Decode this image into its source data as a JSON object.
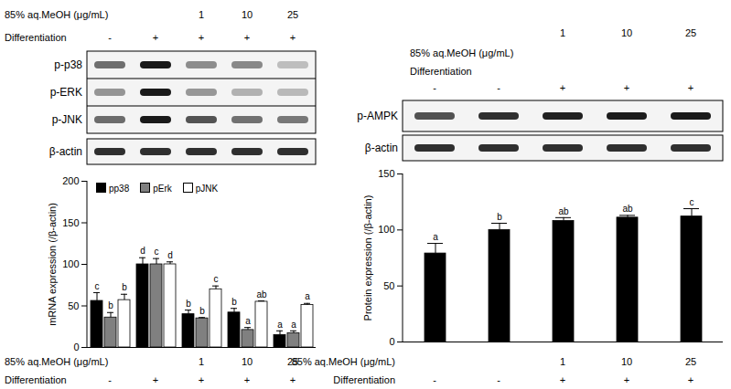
{
  "chart_data": [
    {
      "type": "bar",
      "y_label": "mRNA expression (/β-actin)",
      "ylim": [
        0,
        200
      ],
      "yticks": [
        0,
        50,
        100,
        150,
        200
      ],
      "categories": [
        null,
        null,
        null,
        null,
        null
      ],
      "tick_labels": "y",
      "legend": "top-left",
      "treatments": [
        {
          "label": "85% aq.MeOH (μg/mL)",
          "values": [
            null,
            null,
            "1",
            "10",
            "25"
          ]
        },
        {
          "label": "Differentiation",
          "values": [
            "-",
            "+",
            "+",
            "+",
            "+"
          ]
        }
      ],
      "blots": [
        "p-p38",
        "p-ERK",
        "p-JNK",
        "β-actin"
      ],
      "series": [
        {
          "name": "pp38",
          "color": "#000000",
          "values": [
            56,
            100,
            40,
            42,
            15
          ],
          "errors": [
            10,
            8,
            5,
            5,
            5
          ],
          "letters": [
            "c",
            "d",
            "b",
            "b",
            "a"
          ]
        },
        {
          "name": "pErk",
          "color": "#808080",
          "values": [
            36,
            100,
            35,
            21,
            17
          ],
          "errors": [
            6,
            7,
            1,
            3,
            3
          ],
          "letters": [
            "b",
            "c",
            "b",
            "a",
            "a"
          ]
        },
        {
          "name": "pJNK",
          "color": "#ffffff",
          "values": [
            57,
            100,
            70,
            55,
            51
          ],
          "errors": [
            7,
            3,
            4,
            1,
            2
          ],
          "letters": [
            "b",
            "d",
            "c",
            "ab",
            "a"
          ]
        }
      ]
    },
    {
      "type": "bar",
      "y_label": "Protein expression (/β-actin)",
      "ylim": [
        0,
        150
      ],
      "yticks": [
        0,
        50,
        100,
        150
      ],
      "categories": [
        null,
        null,
        null,
        null,
        null
      ],
      "tick_labels": "y",
      "treatments": [
        {
          "label": "85% aq.MeOH (μg/mL)",
          "values": [
            null,
            null,
            "1",
            "10",
            "25"
          ]
        },
        {
          "label": "Differentiation",
          "values": [
            "-",
            "-",
            "+",
            "+",
            "+"
          ]
        }
      ],
      "blots": [
        "p-AMPK",
        "β-actin"
      ],
      "color": "#000000",
      "values": [
        79,
        100,
        108,
        111,
        112
      ],
      "errors": [
        9,
        6,
        3,
        2,
        7
      ],
      "letters": [
        "a",
        "b",
        "ab",
        "ab",
        "c"
      ]
    }
  ]
}
